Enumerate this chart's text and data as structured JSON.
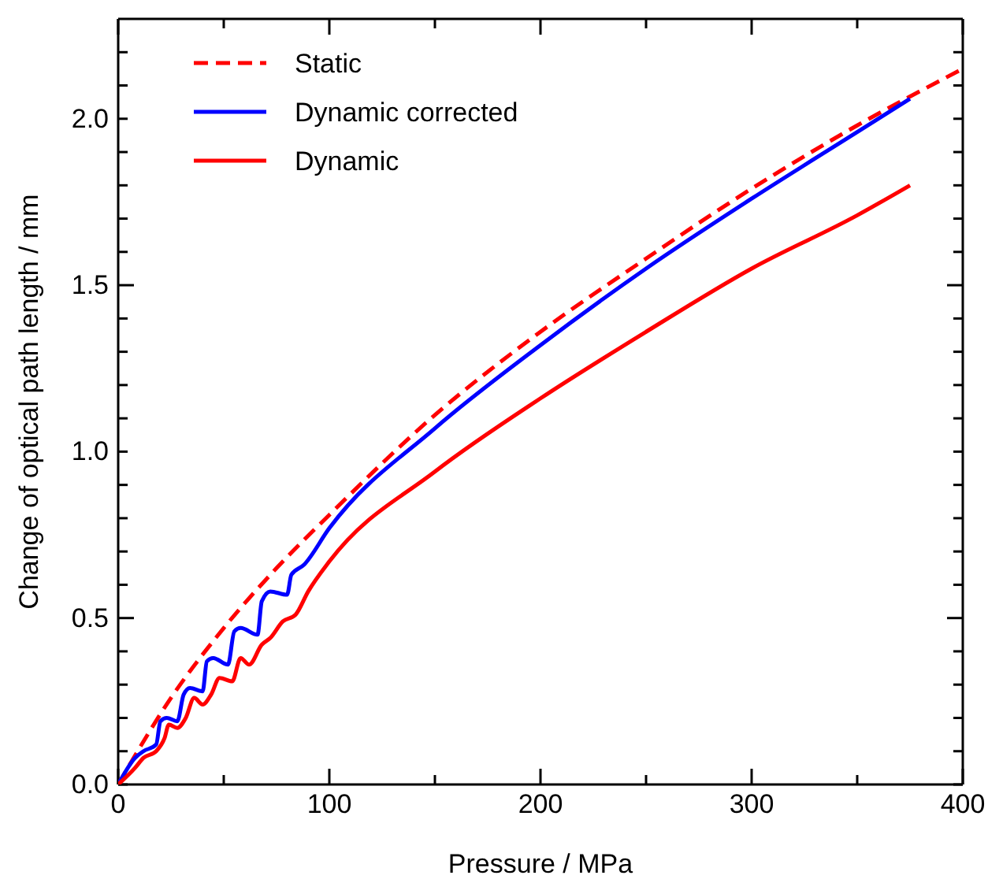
{
  "chart_data": {
    "type": "line",
    "xlabel": "Pressure / MPa",
    "ylabel": "Change of optical path length / mm",
    "xlim": [
      0,
      400
    ],
    "ylim": [
      0,
      2.3
    ],
    "xticks": [
      0,
      {
        "value": 50,
        "label": null
      },
      100,
      {
        "value": 150,
        "label": null
      },
      200,
      {
        "value": 250,
        "label": null
      },
      300,
      {
        "value": 350,
        "label": null
      },
      400
    ],
    "yticks": [
      {
        "value": 0,
        "label": "0.0"
      },
      {
        "value": 0.1,
        "label": null
      },
      {
        "value": 0.2,
        "label": null
      },
      {
        "value": 0.3,
        "label": null
      },
      {
        "value": 0.4,
        "label": null
      },
      0.5,
      {
        "value": 0.6,
        "label": null
      },
      {
        "value": 0.7,
        "label": null
      },
      {
        "value": 0.8,
        "label": null
      },
      {
        "value": 0.9,
        "label": null
      },
      {
        "value": 1,
        "label": "1.0"
      },
      {
        "value": 1.1,
        "label": null
      },
      {
        "value": 1.2,
        "label": null
      },
      {
        "value": 1.3,
        "label": null
      },
      {
        "value": 1.4,
        "label": null
      },
      1.5,
      {
        "value": 1.6,
        "label": null
      },
      {
        "value": 1.7,
        "label": null
      },
      {
        "value": 1.8,
        "label": null
      },
      {
        "value": 1.9,
        "label": null
      },
      {
        "value": 2,
        "label": "2.0"
      },
      {
        "value": 2.1,
        "label": null
      },
      {
        "value": 2.2,
        "label": null
      }
    ],
    "grid": false,
    "legend": "top left",
    "series": [
      {
        "name": "Static",
        "color": "#ff0000",
        "line_style": "dashed",
        "x": [
          0,
          25,
          50,
          75,
          100,
          150,
          200,
          250,
          300,
          350,
          400
        ],
        "values": [
          0,
          0.26,
          0.47,
          0.65,
          0.81,
          1.11,
          1.36,
          1.58,
          1.79,
          1.98,
          2.15
        ]
      },
      {
        "name": "Dynamic corrected",
        "color": "#0000ff",
        "line_style": "solid",
        "x": [
          0,
          8,
          12,
          18,
          20,
          23,
          28,
          31,
          34,
          40,
          42,
          45,
          52,
          55,
          58,
          66,
          68,
          72,
          80,
          82,
          88,
          100,
          150,
          200,
          250,
          300,
          350,
          375
        ],
        "values": [
          0,
          0.08,
          0.1,
          0.12,
          0.19,
          0.2,
          0.19,
          0.27,
          0.29,
          0.28,
          0.37,
          0.38,
          0.36,
          0.46,
          0.47,
          0.45,
          0.55,
          0.58,
          0.57,
          0.63,
          0.66,
          0.77,
          1.07,
          1.32,
          1.55,
          1.76,
          1.96,
          2.06
        ]
      },
      {
        "name": "Dynamic",
        "color": "#ff0000",
        "line_style": "solid",
        "x": [
          0,
          8,
          12,
          18,
          22,
          24,
          28,
          32,
          36,
          40,
          44,
          48,
          54,
          58,
          62,
          68,
          72,
          78,
          84,
          90,
          100,
          150,
          200,
          250,
          300,
          350,
          375
        ],
        "values": [
          0,
          0.05,
          0.08,
          0.1,
          0.14,
          0.18,
          0.17,
          0.2,
          0.26,
          0.24,
          0.27,
          0.32,
          0.31,
          0.38,
          0.36,
          0.42,
          0.44,
          0.49,
          0.51,
          0.58,
          0.67,
          0.94,
          1.16,
          1.36,
          1.55,
          1.71,
          1.8
        ]
      }
    ]
  }
}
